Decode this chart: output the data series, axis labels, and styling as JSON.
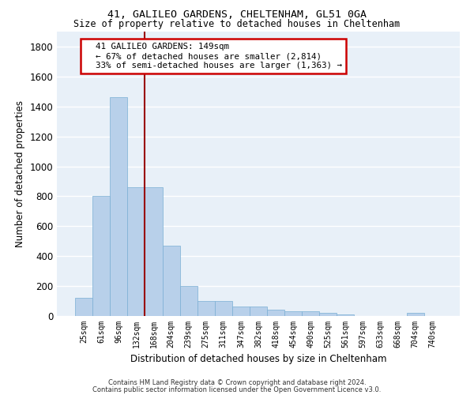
{
  "title1": "41, GALILEO GARDENS, CHELTENHAM, GL51 0GA",
  "title2": "Size of property relative to detached houses in Cheltenham",
  "xlabel": "Distribution of detached houses by size in Cheltenham",
  "ylabel": "Number of detached properties",
  "footnote1": "Contains HM Land Registry data © Crown copyright and database right 2024.",
  "footnote2": "Contains public sector information licensed under the Open Government Licence v3.0.",
  "bar_labels": [
    "25sqm",
    "61sqm",
    "96sqm",
    "132sqm",
    "168sqm",
    "204sqm",
    "239sqm",
    "275sqm",
    "311sqm",
    "347sqm",
    "382sqm",
    "418sqm",
    "454sqm",
    "490sqm",
    "525sqm",
    "561sqm",
    "597sqm",
    "633sqm",
    "668sqm",
    "704sqm",
    "740sqm"
  ],
  "bar_values": [
    120,
    800,
    1460,
    860,
    860,
    470,
    200,
    100,
    100,
    65,
    65,
    40,
    30,
    30,
    20,
    10,
    0,
    0,
    0,
    20,
    0
  ],
  "bar_color": "#b8d0ea",
  "bar_edge_color": "#7aafd4",
  "background_color": "#e8f0f8",
  "grid_color": "#ffffff",
  "vline_color": "#990000",
  "annotation_text": "  41 GALILEO GARDENS: 149sqm\n  ← 67% of detached houses are smaller (2,814)\n  33% of semi-detached houses are larger (1,363) →",
  "annotation_box_color": "#cc0000",
  "ylim": [
    0,
    1900
  ],
  "yticks": [
    0,
    200,
    400,
    600,
    800,
    1000,
    1200,
    1400,
    1600,
    1800
  ]
}
